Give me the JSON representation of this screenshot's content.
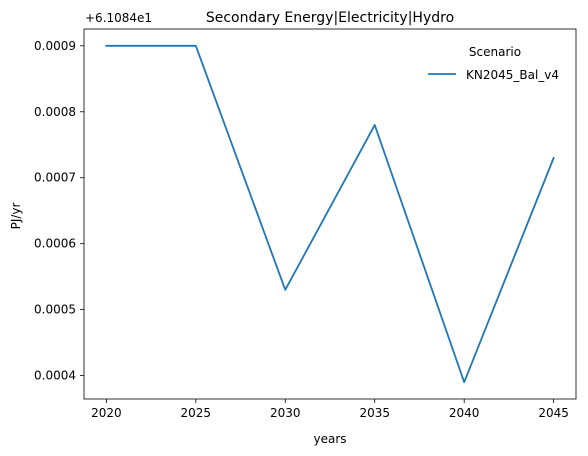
{
  "chart_data": {
    "type": "line",
    "title": "Secondary Energy|Electricity|Hydro",
    "xlabel": "years",
    "ylabel": "PJ/yr",
    "y_offset_text": "+6.1084e1",
    "x": [
      2020,
      2025,
      2030,
      2035,
      2040,
      2045
    ],
    "series": [
      {
        "name": "KN2045_Bal_v4",
        "values": [
          0.0009,
          0.0009,
          0.00053,
          0.00078,
          0.00039,
          0.00073
        ]
      }
    ],
    "x_ticks": [
      "2020",
      "2025",
      "2030",
      "2035",
      "2040",
      "2045"
    ],
    "y_ticks": [
      "0.0004",
      "0.0005",
      "0.0006",
      "0.0007",
      "0.0008",
      "0.0009"
    ],
    "xlim": [
      2018.75,
      2046.25
    ],
    "ylim": [
      0.0003645,
      0.0009255
    ],
    "grid": false,
    "legend": {
      "title": "Scenario",
      "placement": "top-right"
    },
    "colors": {
      "series": "#1f77b4",
      "axes": "#000000"
    }
  }
}
